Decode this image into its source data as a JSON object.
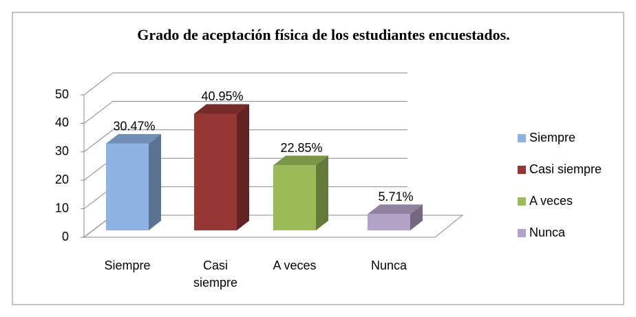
{
  "chart_data": {
    "type": "bar3d",
    "title": "Grado de aceptación física de los estudiantes encuestados.",
    "categories": [
      "Siempre",
      "Casi siempre",
      "A veces",
      "Nunca"
    ],
    "values": [
      30.47,
      40.95,
      22.85,
      5.71
    ],
    "value_labels": [
      "30.47%",
      "40.95%",
      "22.85%",
      "5.71%"
    ],
    "colors": [
      "#8db3e2",
      "#953735",
      "#9bbb59",
      "#b3a2c7"
    ],
    "ylim": [
      0,
      50
    ],
    "yticks": [
      0,
      10,
      20,
      30,
      40,
      50
    ],
    "grid": true,
    "legend": "right"
  }
}
